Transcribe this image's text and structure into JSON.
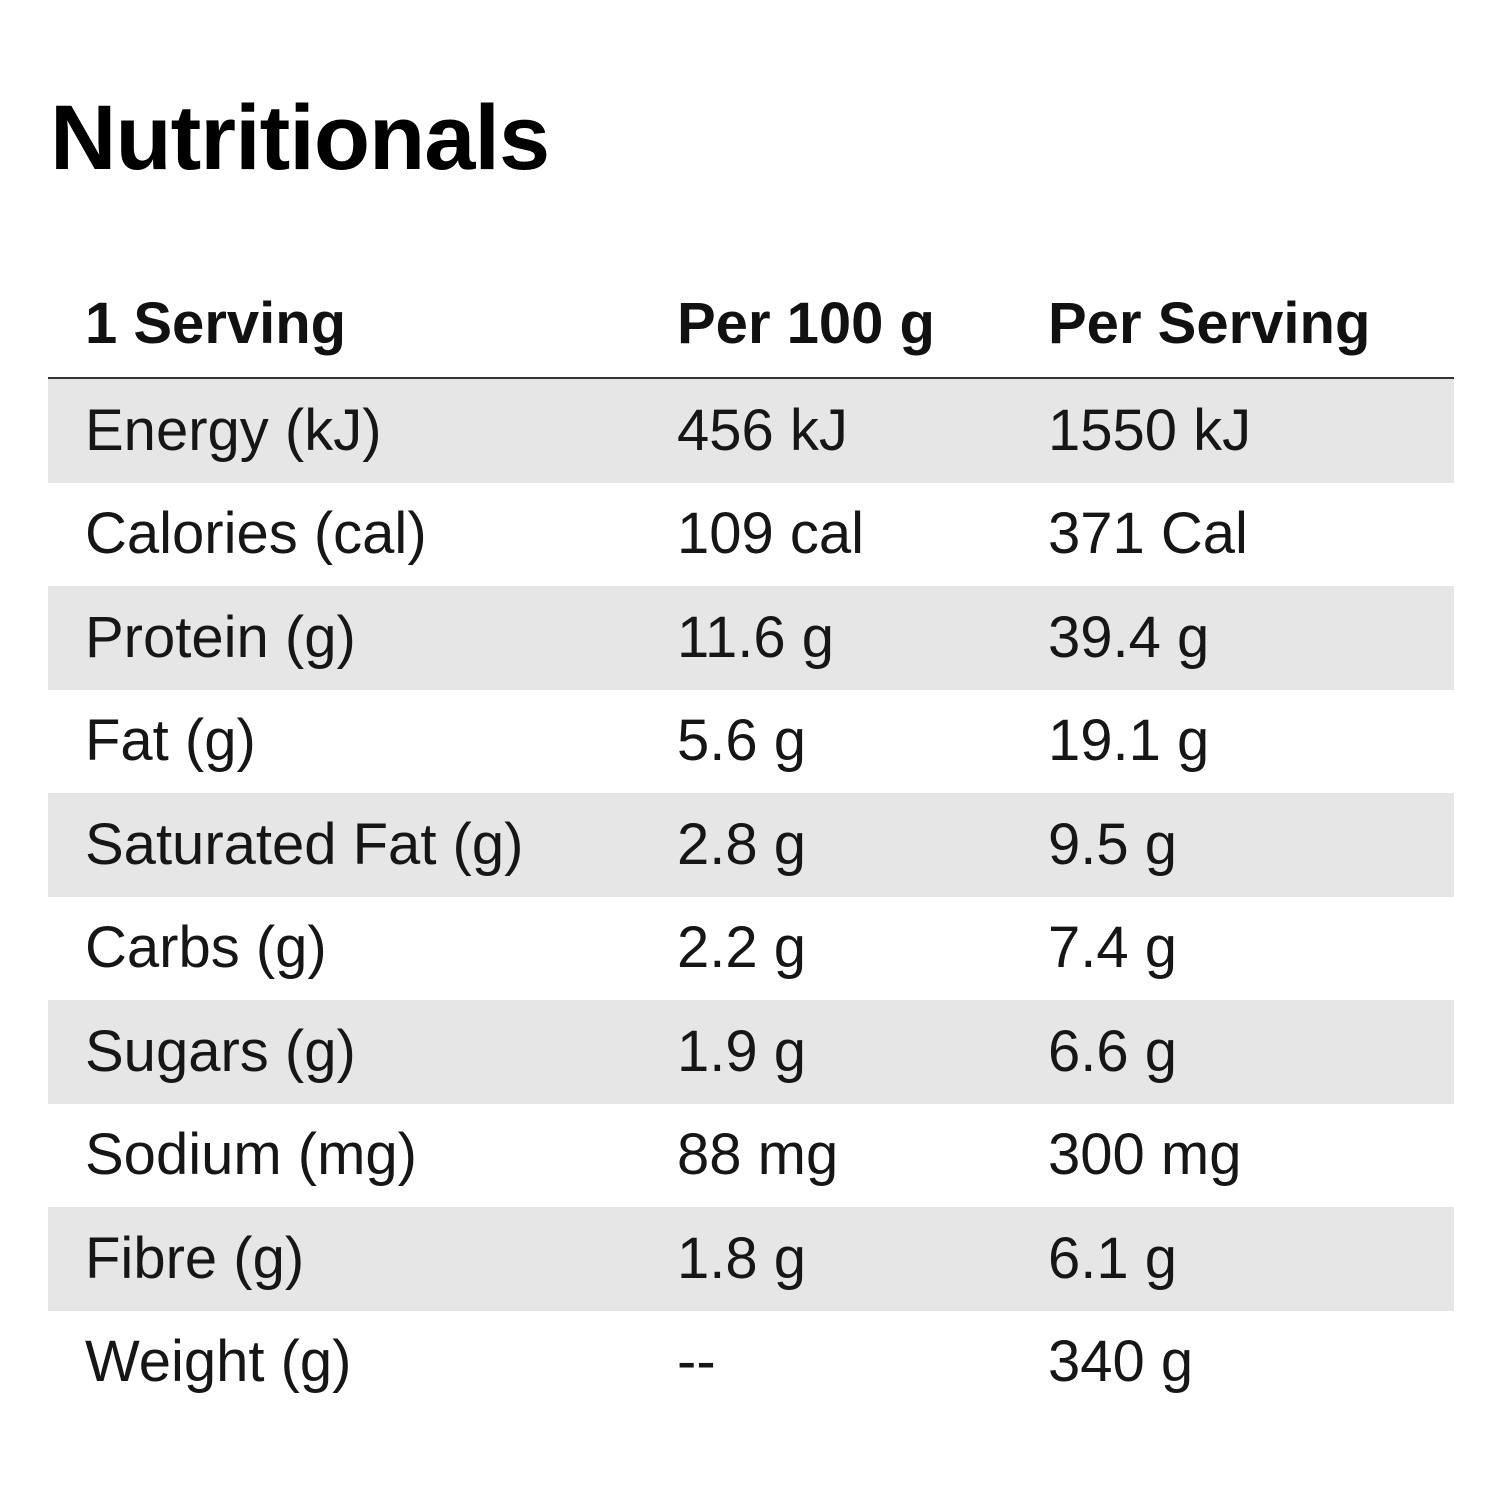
{
  "title": "Nutritionals",
  "table": {
    "headers": {
      "name": "1 Serving",
      "per_100g": "Per 100 g",
      "per_serving": "Per Serving"
    },
    "rows": [
      {
        "name": "Energy (kJ)",
        "per_100g": "456 kJ",
        "per_serving": "1550 kJ"
      },
      {
        "name": "Calories (cal)",
        "per_100g": "109 cal",
        "per_serving": "371 Cal"
      },
      {
        "name": "Protein (g)",
        "per_100g": "11.6 g",
        "per_serving": "39.4 g"
      },
      {
        "name": "Fat (g)",
        "per_100g": "5.6 g",
        "per_serving": "19.1 g"
      },
      {
        "name": "Saturated Fat (g)",
        "per_100g": "2.8 g",
        "per_serving": "9.5 g"
      },
      {
        "name": "Carbs (g)",
        "per_100g": "2.2 g",
        "per_serving": "7.4 g"
      },
      {
        "name": "Sugars (g)",
        "per_100g": "1.9 g",
        "per_serving": "6.6 g"
      },
      {
        "name": "Sodium (mg)",
        "per_100g": "88 mg",
        "per_serving": "300 mg"
      },
      {
        "name": "Fibre (g)",
        "per_100g": "1.8 g",
        "per_serving": "6.1 g"
      },
      {
        "name": "Weight (g)",
        "per_100g": "--",
        "per_serving": "340 g"
      }
    ]
  },
  "colors": {
    "shaded_row": "#e6e6e6",
    "text": "#111111",
    "background": "#ffffff"
  }
}
